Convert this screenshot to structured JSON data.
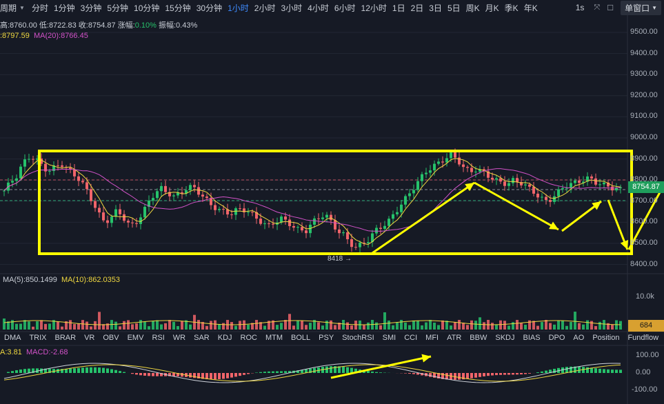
{
  "toolbar": {
    "period_label": "周期",
    "timeframes": [
      "分时",
      "1分钟",
      "3分钟",
      "5分钟",
      "10分钟",
      "15分钟",
      "30分钟",
      "1小时",
      "2小时",
      "3小时",
      "4小时",
      "6小时",
      "12小时",
      "1日",
      "2日",
      "3日",
      "5日",
      "周K",
      "月K",
      "季K",
      "年K"
    ],
    "active_timeframe": "1小时",
    "seconds_label": "1s",
    "window_button": "单窗口"
  },
  "ohlc": {
    "high": "高:8760.00",
    "low": "低:8722.83",
    "close": "收:8754.87",
    "change": "涨幅:",
    "change_value": "0.10%",
    "amplitude": "振幅:0.43%"
  },
  "ma": {
    "ma5": ":8797.59",
    "ma20": "MA(20):8766.45"
  },
  "price_axis": [
    "9500.00",
    "9400.00",
    "9300.00",
    "9200.00",
    "9100.00",
    "9000.00",
    "8900.00",
    "8800.00",
    "8754.87",
    "8700.00",
    "8600.00",
    "8500.00",
    "8400.00"
  ],
  "current_price": "8754.87",
  "low_marker": "8418 →",
  "volume": {
    "ma5": "MA(5):850.1499",
    "ma10": "MA(10):862.0353",
    "axis_label": "10.0k",
    "current": "684"
  },
  "indicator_tabs": [
    "DMA",
    "TRIX",
    "BRAR",
    "VR",
    "OBV",
    "EMV",
    "RSI",
    "WR",
    "SAR",
    "KDJ",
    "ROC",
    "MTM",
    "BOLL",
    "PSY",
    "StochRSI",
    "SMI",
    "CCI",
    "MFI",
    "ATR",
    "BBW",
    "SKDJ",
    "BIAS",
    "DPO",
    "AO",
    "Position",
    "Fundflow"
  ],
  "macd": {
    "dea": "A:3.81",
    "macd": "MACD:-2.68",
    "axis": [
      "100.00",
      "0.00",
      "-100.00"
    ]
  },
  "colors": {
    "up": "#26c26b",
    "down": "#f0646a",
    "annotation": "#ffff00",
    "ma5": "#f0d840",
    "ma20": "#d352c9"
  }
}
